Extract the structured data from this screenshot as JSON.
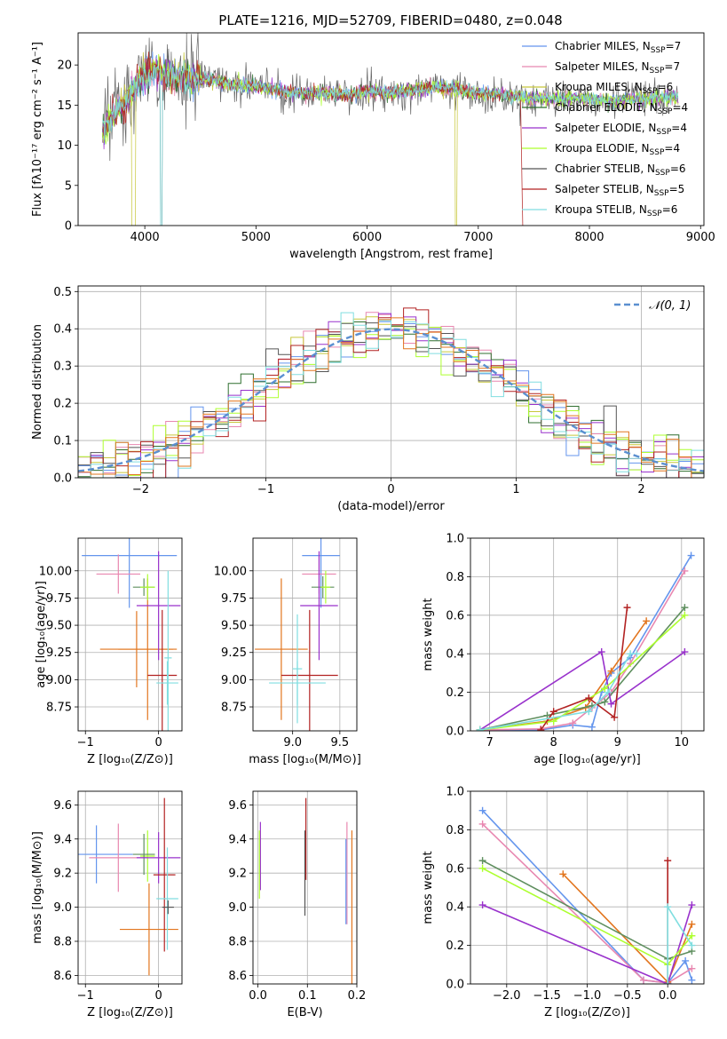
{
  "colors": [
    "#6495ED",
    "#E887B0",
    "#C8C83C",
    "#2F6F2F",
    "#9932CC",
    "#ADFF2F",
    "#555555",
    "#B22222",
    "#80DEE0",
    "#E2751E",
    "#5F8F5F"
  ],
  "chart_data": [
    {
      "id": "spectrum",
      "type": "line",
      "title": "PLATE=1216, MJD=52709, FIBERID=0480, z=0.048",
      "xlabel": "wavelength [Angstrom, rest frame]",
      "ylabel": "Flux [fλ10⁻¹⁷ erg cm⁻² s⁻¹ A⁻¹]",
      "xlim": [
        3400,
        9030
      ],
      "ylim": [
        0,
        24
      ],
      "xticks": [
        4000,
        5000,
        6000,
        7000,
        8000,
        9000
      ],
      "yticks": [
        0,
        5,
        10,
        15,
        20
      ],
      "grid": false,
      "legend_position": "upper-right",
      "spectrum_continuum": {
        "x": [
          3620,
          3700,
          3800,
          3900,
          4000,
          4100,
          4200,
          4400,
          4600,
          4800,
          5000,
          5200,
          5400,
          5600,
          5800,
          6000,
          6200,
          6400,
          6600,
          6800,
          7000,
          7200,
          7400,
          7600,
          7800,
          8000,
          8200,
          8400,
          8600,
          8800
        ],
        "y": [
          12,
          13.5,
          15,
          17,
          19,
          19.5,
          18.5,
          18.5,
          18.2,
          17.5,
          17.3,
          16.8,
          16.5,
          16.6,
          16.2,
          16.8,
          16.5,
          16.8,
          17.2,
          17.0,
          16.5,
          16.3,
          16.0,
          15.8,
          15.8,
          15.9,
          15.5,
          15.8,
          15.8,
          16.0
        ]
      },
      "legend": [
        {
          "label_main": "Chabrier MILES, N",
          "label_sub": "SSP",
          "label_tail": "=7"
        },
        {
          "label_main": "Salpeter MILES, N",
          "label_sub": "SSP",
          "label_tail": "=7"
        },
        {
          "label_main": "Kroupa MILES, N",
          "label_sub": "SSP",
          "label_tail": "=6"
        },
        {
          "label_main": "Chabrier ELODIE, N",
          "label_sub": "SSP",
          "label_tail": "=4"
        },
        {
          "label_main": "Salpeter ELODIE, N",
          "label_sub": "SSP",
          "label_tail": "=4"
        },
        {
          "label_main": "Kroupa ELODIE, N",
          "label_sub": "SSP",
          "label_tail": "=4"
        },
        {
          "label_main": "Chabrier STELIB, N",
          "label_sub": "SSP",
          "label_tail": "=6"
        },
        {
          "label_main": "Salpeter STELIB, N",
          "label_sub": "SSP",
          "label_tail": "=5"
        },
        {
          "label_main": "Kroupa STELIB, N",
          "label_sub": "SSP",
          "label_tail": "=6"
        }
      ]
    },
    {
      "id": "residuals",
      "type": "line",
      "xlabel": "(data-model)/error",
      "ylabel": "Normed distribution",
      "xlim": [
        -2.5,
        2.5
      ],
      "ylim": [
        0,
        0.515
      ],
      "xticks": [
        -2,
        -1,
        0,
        1,
        2
      ],
      "yticks": [
        0.0,
        0.1,
        0.2,
        0.3,
        0.4,
        0.5
      ],
      "grid": true,
      "legend_position": "upper-right",
      "legend_label": "𝒩(0, 1)",
      "histogram_bins": 50
    },
    {
      "id": "age-vs-Z",
      "type": "scatter",
      "xlabel": "Z [log₁₀(Z/Z⊙)]",
      "ylabel": "age  [log₁₀(age/yr)]",
      "xlim": [
        -1.1,
        0.32
      ],
      "ylim": [
        8.53,
        10.3
      ],
      "xticks": [
        -1,
        0
      ],
      "yticks": [
        8.75,
        9.0,
        9.25,
        9.5,
        9.75,
        10.0
      ],
      "grid": true,
      "points": [
        {
          "x": -0.4,
          "xerr": 0.65,
          "y": 10.14,
          "yerr": 0.48,
          "c": 0
        },
        {
          "x": -0.55,
          "xerr": 0.3,
          "y": 9.97,
          "yerr": 0.18,
          "c": 1
        },
        {
          "x": -0.3,
          "xerr": 0.5,
          "y": 9.28,
          "yerr": 0.35,
          "c": 9
        },
        {
          "x": -0.15,
          "xerr": 0.4,
          "y": 9.28,
          "yerr": 0.65,
          "c": 9
        },
        {
          "x": -0.2,
          "xerr": 0.15,
          "y": 9.85,
          "yerr": 0.08,
          "c": 10
        },
        {
          "x": -0.15,
          "xerr": 0.1,
          "y": 9.85,
          "yerr": 0.12,
          "c": 5
        },
        {
          "x": 0.0,
          "xerr": 0.3,
          "y": 9.68,
          "yerr": 0.5,
          "c": 4
        },
        {
          "x": 0.05,
          "xerr": 0.2,
          "y": 9.04,
          "yerr": 0.6,
          "c": 7
        },
        {
          "x": 0.12,
          "xerr": 0.15,
          "y": 8.97,
          "yerr": 0.2,
          "c": 8
        },
        {
          "x": 0.13,
          "xerr": 0.05,
          "y": 9.2,
          "yerr": 0.8,
          "c": 8
        }
      ]
    },
    {
      "id": "age-vs-mass",
      "type": "scatter",
      "xlabel": "mass [log₁₀(M/M⊙)]",
      "ylabel": "",
      "xlim": [
        8.58,
        9.68
      ],
      "ylim": [
        8.53,
        10.3
      ],
      "xticks": [
        9.0,
        9.5
      ],
      "yticks": [
        8.75,
        9.0,
        9.25,
        9.5,
        9.75,
        10.0
      ],
      "grid": true,
      "points": [
        {
          "x": 9.3,
          "xerr": 0.2,
          "y": 10.14,
          "yerr": 0.48,
          "c": 0
        },
        {
          "x": 9.28,
          "xerr": 0.18,
          "y": 9.97,
          "yerr": 0.18,
          "c": 1
        },
        {
          "x": 8.88,
          "xerr": 0.28,
          "y": 9.28,
          "yerr": 0.65,
          "c": 9
        },
        {
          "x": 9.32,
          "xerr": 0.12,
          "y": 9.85,
          "yerr": 0.1,
          "c": 10
        },
        {
          "x": 9.28,
          "xerr": 0.2,
          "y": 9.68,
          "yerr": 0.5,
          "c": 4
        },
        {
          "x": 9.18,
          "xerr": 0.3,
          "y": 9.04,
          "yerr": 0.6,
          "c": 7
        },
        {
          "x": 9.05,
          "xerr": 0.3,
          "y": 8.97,
          "yerr": 0.2,
          "c": 8
        },
        {
          "x": 9.05,
          "xerr": 0.05,
          "y": 9.1,
          "yerr": 0.5,
          "c": 8
        },
        {
          "x": 9.35,
          "xerr": 0.05,
          "y": 9.85,
          "yerr": 0.15,
          "c": 5
        }
      ]
    },
    {
      "id": "mass-weight-vs-age",
      "type": "line",
      "xlabel": "age  [log₁₀(age/yr)]",
      "ylabel": "mass weight",
      "xlim": [
        6.7,
        10.35
      ],
      "ylim": [
        0,
        1.0
      ],
      "xticks": [
        7,
        8,
        9,
        10
      ],
      "yticks": [
        0.0,
        0.2,
        0.4,
        0.6,
        0.8,
        1.0
      ],
      "grid": true,
      "series": [
        {
          "c": 0,
          "x": [
            6.85,
            7.8,
            8.3,
            8.6,
            8.75,
            8.9,
            9.2,
            10.15
          ],
          "y": [
            0.005,
            0.005,
            0.03,
            0.02,
            0.2,
            0.3,
            0.38,
            0.91
          ]
        },
        {
          "c": 1,
          "x": [
            6.85,
            7.8,
            8.3,
            8.6,
            8.9,
            9.2,
            10.05
          ],
          "y": [
            0.005,
            0.01,
            0.04,
            0.12,
            0.2,
            0.35,
            0.83
          ]
        },
        {
          "c": 9,
          "x": [
            6.85,
            7.9,
            8.5,
            8.9,
            9.45
          ],
          "y": [
            0.005,
            0.05,
            0.12,
            0.31,
            0.57
          ]
        },
        {
          "c": 10,
          "x": [
            6.85,
            7.9,
            8.6,
            8.8,
            10.05
          ],
          "y": [
            0.005,
            0.08,
            0.13,
            0.15,
            0.64
          ]
        },
        {
          "c": 4,
          "x": [
            6.85,
            8.75,
            8.9,
            10.05
          ],
          "y": [
            0.005,
            0.41,
            0.14,
            0.41
          ]
        },
        {
          "c": 5,
          "x": [
            6.85,
            8.0,
            8.8,
            10.05
          ],
          "y": [
            0.005,
            0.05,
            0.22,
            0.6
          ]
        },
        {
          "c": 7,
          "x": [
            7.8,
            8.0,
            8.55,
            8.95,
            9.15
          ],
          "y": [
            0.005,
            0.1,
            0.17,
            0.07,
            0.64
          ]
        },
        {
          "c": 8,
          "x": [
            6.85,
            8.55,
            8.85,
            9.2,
            9.3
          ],
          "y": [
            0.005,
            0.1,
            0.2,
            0.4,
            0.4
          ]
        }
      ]
    },
    {
      "id": "mass-vs-Z",
      "type": "scatter",
      "xlabel": "Z [log₁₀(Z/Z⊙)]",
      "ylabel": "mass [log₁₀(M/M⊙)]",
      "xlim": [
        -1.1,
        0.32
      ],
      "ylim": [
        8.55,
        9.68
      ],
      "xticks": [
        -1,
        0
      ],
      "yticks": [
        8.6,
        8.8,
        9.0,
        9.2,
        9.4,
        9.6
      ],
      "grid": true,
      "points": [
        {
          "x": -0.85,
          "xerr": 0.5,
          "y": 9.31,
          "yerr": 0.17,
          "c": 0
        },
        {
          "x": -0.55,
          "xerr": 0.4,
          "y": 9.29,
          "yerr": 0.2,
          "c": 1
        },
        {
          "x": -0.15,
          "xerr": 0.1,
          "y": 9.3,
          "yerr": 0.15,
          "c": 5
        },
        {
          "x": -0.2,
          "xerr": 0.15,
          "y": 9.31,
          "yerr": 0.12,
          "c": 10
        },
        {
          "x": -0.13,
          "xerr": 0.4,
          "y": 8.87,
          "yerr": 0.27,
          "c": 9
        },
        {
          "x": 0.0,
          "xerr": 0.3,
          "y": 9.29,
          "yerr": 0.15,
          "c": 4
        },
        {
          "x": 0.08,
          "xerr": 0.15,
          "y": 9.19,
          "yerr": 0.45,
          "c": 7
        },
        {
          "x": 0.12,
          "xerr": 0.15,
          "y": 9.05,
          "yerr": 0.3,
          "c": 8
        },
        {
          "x": 0.13,
          "xerr": 0.08,
          "y": 9.0,
          "yerr": 0.04,
          "c": 6
        }
      ]
    },
    {
      "id": "mass-vs-EBV",
      "type": "scatter",
      "xlabel": "E(B-V)",
      "ylabel": "",
      "xlim": [
        -0.01,
        0.2
      ],
      "ylim": [
        8.55,
        9.68
      ],
      "xticks": [
        0.0,
        0.1,
        0.2
      ],
      "yticks": [
        8.6,
        8.8,
        9.0,
        9.2,
        9.4,
        9.6
      ],
      "grid": true,
      "points": [
        {
          "x": 0.005,
          "y": 9.3,
          "yerr": 0.2,
          "c": 4
        },
        {
          "x": 0.003,
          "y": 9.25,
          "yerr": 0.2,
          "c": 5
        },
        {
          "x": 0.095,
          "y": 9.2,
          "yerr": 0.25,
          "c": 6
        },
        {
          "x": 0.097,
          "y": 9.4,
          "yerr": 0.24,
          "c": 7
        },
        {
          "x": 0.18,
          "y": 9.2,
          "yerr": 0.3,
          "c": 1
        },
        {
          "x": 0.178,
          "y": 9.15,
          "yerr": 0.25,
          "c": 0
        },
        {
          "x": 0.19,
          "y": 9.0,
          "yerr": 0.45,
          "c": 9
        }
      ]
    },
    {
      "id": "mass-weight-vs-Z",
      "type": "line",
      "xlabel": "Z [log₁₀(Z/Z⊙)]",
      "ylabel": "mass weight",
      "xlim": [
        -2.45,
        0.45
      ],
      "ylim": [
        0,
        1.0
      ],
      "xticks": [
        -2.0,
        -1.5,
        -1.0,
        -0.5,
        0.0
      ],
      "yticks": [
        0.0,
        0.2,
        0.4,
        0.6,
        0.8,
        1.0
      ],
      "grid": true,
      "series": [
        {
          "c": 0,
          "x": [
            -2.3,
            -0.3,
            0.0,
            0.22,
            0.3
          ],
          "y": [
            0.9,
            0.02,
            0.005,
            0.12,
            0.02
          ]
        },
        {
          "c": 1,
          "x": [
            -2.3,
            -0.3,
            0.0,
            0.3
          ],
          "y": [
            0.83,
            0.02,
            0.005,
            0.08
          ]
        },
        {
          "c": 9,
          "x": [
            -1.3,
            0.0,
            0.3
          ],
          "y": [
            0.57,
            0.01,
            0.31
          ]
        },
        {
          "c": 10,
          "x": [
            -2.3,
            0.0,
            0.3
          ],
          "y": [
            0.64,
            0.13,
            0.17
          ]
        },
        {
          "c": 4,
          "x": [
            -2.3,
            0.0,
            0.3
          ],
          "y": [
            0.41,
            0.0,
            0.41
          ]
        },
        {
          "c": 5,
          "x": [
            -2.3,
            0.0,
            0.3
          ],
          "y": [
            0.6,
            0.1,
            0.25
          ]
        },
        {
          "c": 7,
          "x": [
            0.0,
            0.0
          ],
          "y": [
            0.0,
            0.64
          ]
        },
        {
          "c": 8,
          "x": [
            0.0,
            0.0,
            0.3
          ],
          "y": [
            0.0,
            0.4,
            0.2
          ]
        }
      ]
    }
  ]
}
